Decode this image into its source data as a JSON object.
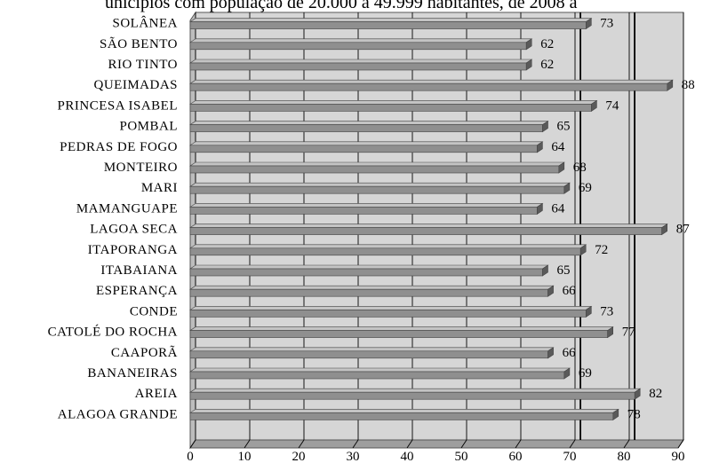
{
  "chart_data": {
    "type": "bar",
    "orientation": "horizontal",
    "title": "unicípios com população de 20.000 a 49.999 habitantes, de 2008 a",
    "categories": [
      "SOLÂNEA",
      "SÃO BENTO",
      "RIO TINTO",
      "QUEIMADAS",
      "PRINCESA ISABEL",
      "POMBAL",
      "PEDRAS DE FOGO",
      "MONTEIRO",
      "MARI",
      "MAMANGUAPE",
      "LAGOA SECA",
      "ITAPORANGA",
      "ITABAIANA",
      "ESPERANÇA",
      "CONDE",
      "CATOLÉ DO ROCHA",
      "CAAPORÃ",
      "BANANEIRAS",
      "AREIA",
      "ALAGOA GRANDE"
    ],
    "values": [
      73,
      62,
      62,
      88,
      74,
      65,
      64,
      68,
      69,
      64,
      87,
      72,
      65,
      66,
      73,
      77,
      66,
      69,
      82,
      78
    ],
    "xlim": [
      0,
      90
    ],
    "xticks": [
      0,
      10,
      20,
      30,
      40,
      50,
      60,
      70,
      80,
      90
    ],
    "grid": true,
    "reference_lines": [
      71,
      81
    ],
    "colors": {
      "bar_front": "#8f8f8f",
      "bar_top": "#c4c4c4",
      "bar_end": "#5a5a5a",
      "plot_wall": "#d6d6d6",
      "grid": "#000000"
    }
  }
}
